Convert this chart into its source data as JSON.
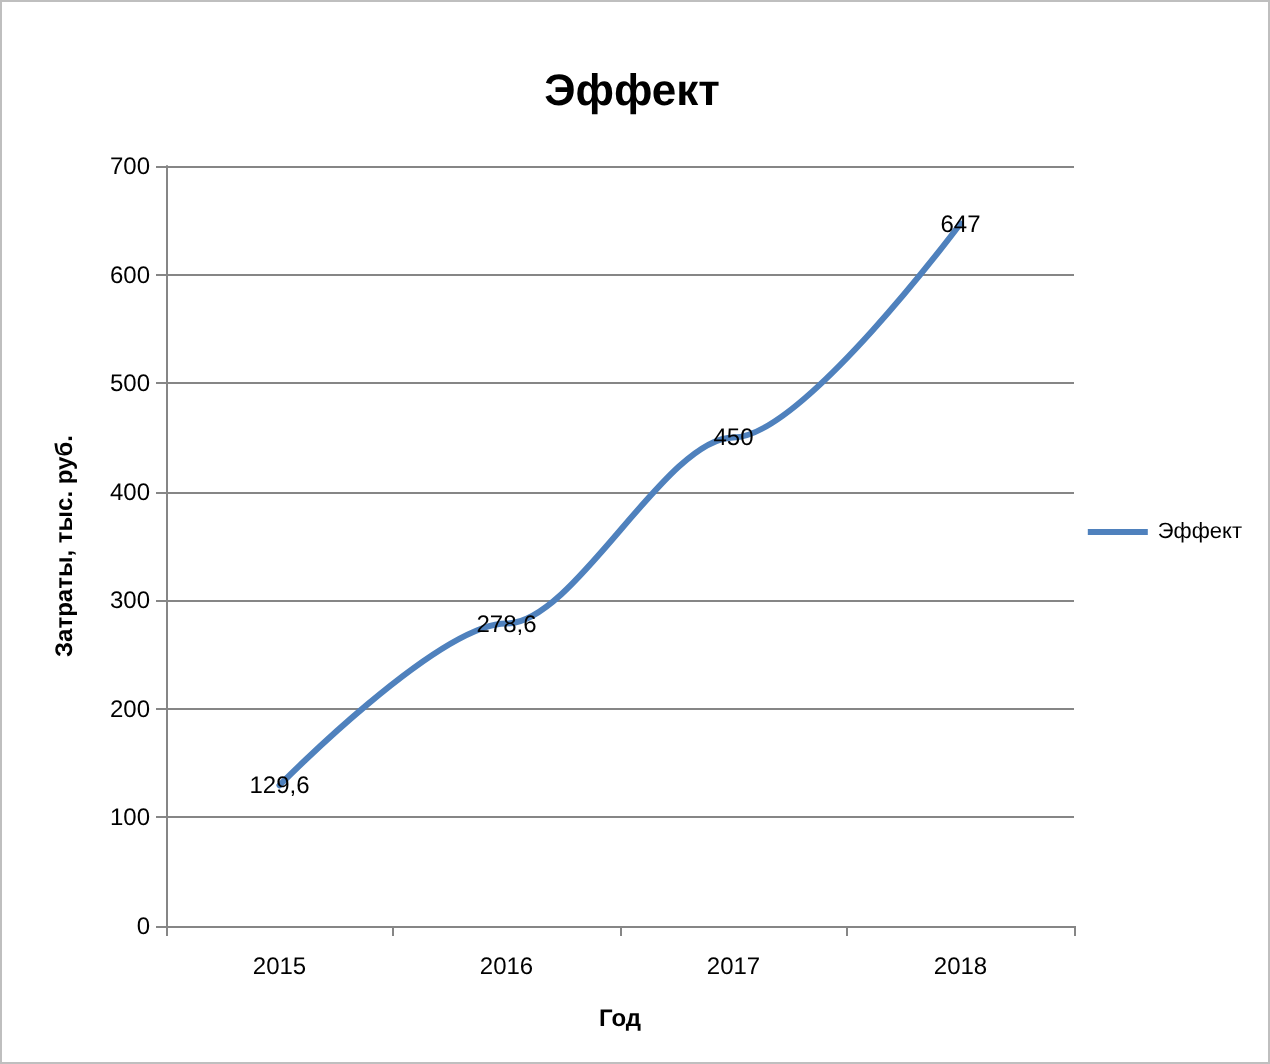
{
  "chart_data": {
    "type": "line",
    "title": "Эффект",
    "xlabel": "Год",
    "ylabel": "Затраты, тыс. руб.",
    "categories": [
      "2015",
      "2016",
      "2017",
      "2018"
    ],
    "series": [
      {
        "name": "Эффект",
        "color": "#4f81bd",
        "values": [
          129.6,
          278.6,
          450,
          647
        ],
        "value_labels": [
          "129,6",
          "278,6",
          "450",
          "647"
        ]
      }
    ],
    "ylim": [
      0,
      700
    ],
    "yticks": [
      0,
      100,
      200,
      300,
      400,
      500,
      600,
      700
    ],
    "grid": "y",
    "legend": "right",
    "marker": "none",
    "line_style": "solid"
  }
}
